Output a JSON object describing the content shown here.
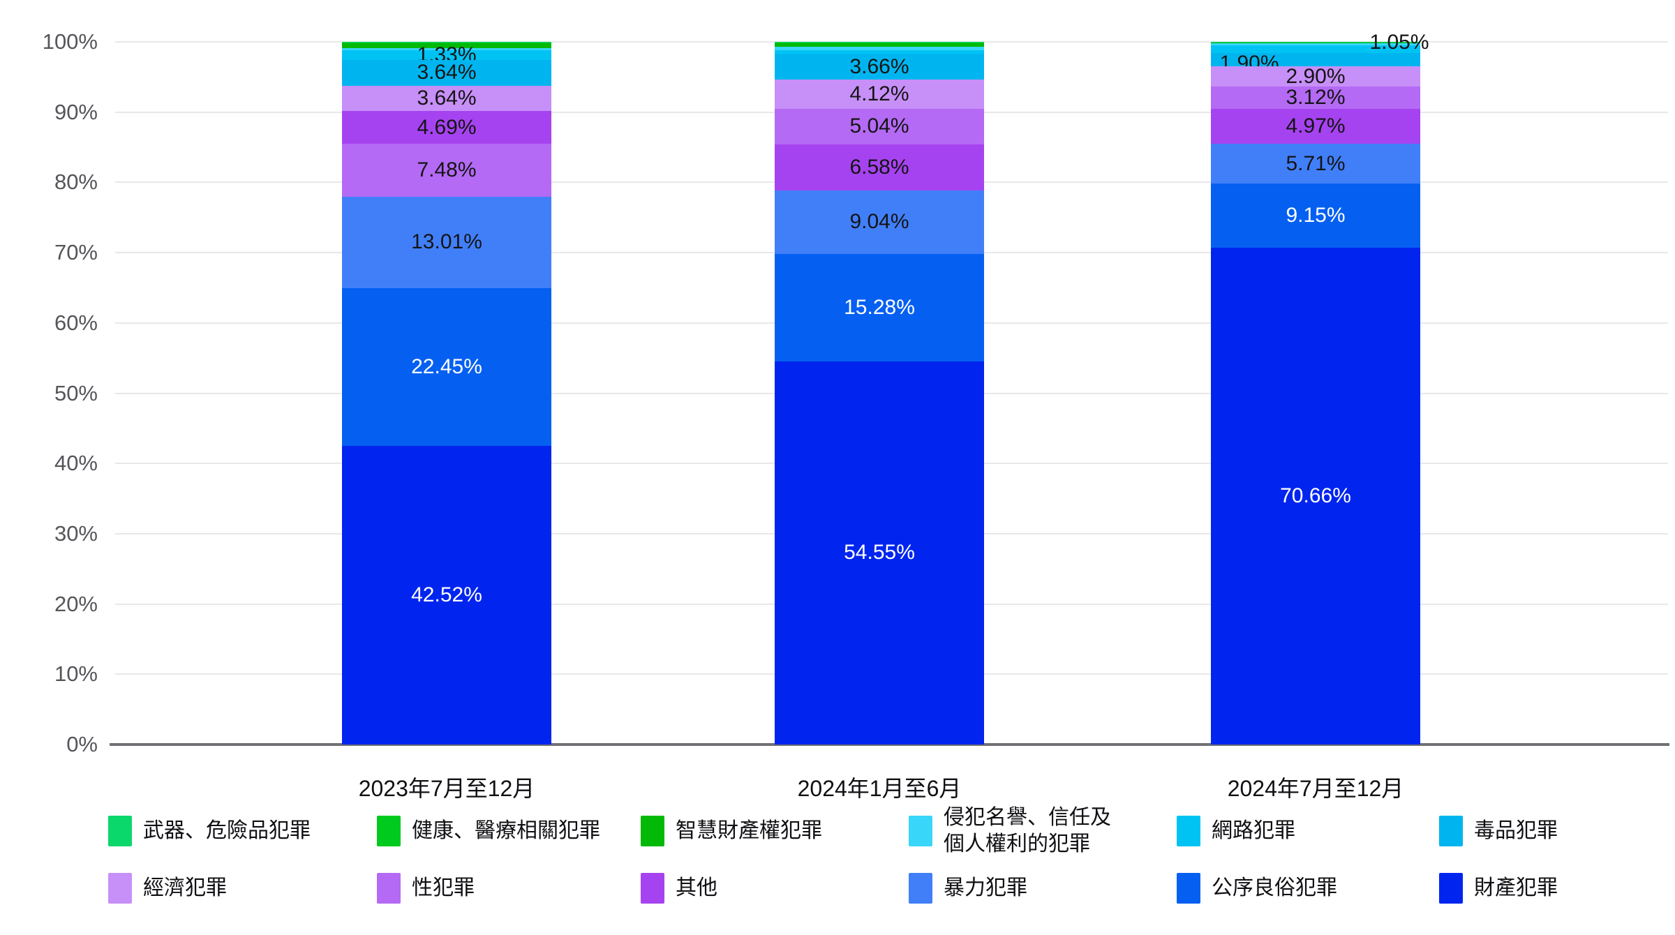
{
  "chart_data": {
    "type": "bar",
    "subtype": "stacked-percentage-column",
    "title": "",
    "unit": "%",
    "ylim": [
      0,
      100
    ],
    "grid": true,
    "legend_position": "bottom",
    "y_ticks": [
      "0%",
      "10%",
      "20%",
      "30%",
      "40%",
      "50%",
      "60%",
      "70%",
      "80%",
      "90%",
      "100%"
    ],
    "categories": [
      "2023年7月至12月",
      "2024年1月至6月",
      "2024年7月至12月"
    ],
    "series": [
      {
        "name": "武器、危險品犯罪",
        "color": "#0BD86B",
        "values": [
          0.1,
          0.1,
          0.05
        ]
      },
      {
        "name": "健康、醫療相關犯罪",
        "color": "#00CA1D",
        "values": [
          0.14,
          0.13,
          0.05
        ]
      },
      {
        "name": "智慧財產權犯罪",
        "color": "#02B907",
        "values": [
          0.7,
          0.45,
          0.14
        ]
      },
      {
        "name": "侵犯名譽、信任及個人權利的犯罪",
        "color": "#38D6F9",
        "values": [
          0.3,
          0.55,
          0.3
        ],
        "legend_lines": [
          "侵犯名譽、信任及",
          "個人權利的犯罪"
        ]
      },
      {
        "name": "網路犯罪",
        "color": "#00C3F4",
        "values": [
          1.33,
          0.5,
          1.05
        ]
      },
      {
        "name": "毒品犯罪",
        "color": "#00B5EF",
        "values": [
          3.64,
          3.66,
          1.9
        ]
      },
      {
        "name": "經濟犯罪",
        "color": "#C78FF8",
        "values": [
          3.64,
          4.12,
          2.9
        ]
      },
      {
        "name": "性犯罪",
        "color": "#B46AF4",
        "values": [
          7.48,
          5.04,
          3.12
        ]
      },
      {
        "name": "其他",
        "color": "#A643F0",
        "values": [
          4.69,
          6.58,
          4.97
        ]
      },
      {
        "name": "暴力犯罪",
        "color": "#417FF9",
        "values": [
          13.01,
          9.04,
          5.71
        ]
      },
      {
        "name": "公序良俗犯罪",
        "color": "#0560F2",
        "values": [
          22.45,
          15.28,
          9.15
        ]
      },
      {
        "name": "財產犯罪",
        "color": "#0125EF",
        "values": [
          42.52,
          54.55,
          70.66
        ]
      }
    ],
    "stack_orders_top_to_bottom": [
      [
        0,
        1,
        2,
        3,
        4,
        5,
        6,
        8,
        7,
        9,
        10,
        11
      ],
      [
        0,
        1,
        2,
        3,
        4,
        5,
        6,
        7,
        8,
        9,
        10,
        11
      ],
      [
        0,
        1,
        2,
        3,
        4,
        5,
        6,
        7,
        8,
        9,
        10,
        11
      ]
    ],
    "label_min_pct": 1.0,
    "white_label_series": [
      10,
      11
    ],
    "label_offsets": {
      "2,4": [
        120,
        -10
      ],
      "2,5": [
        -95,
        5
      ]
    },
    "shown_value_labels": {
      "2023年7月至12月": [
        "1.33%",
        "3.64%",
        "3.64%",
        "4.69%",
        "7.48%",
        "13.01%",
        "22.45%",
        "42.52%"
      ],
      "2024年1月至6月": [
        "3.66%",
        "4.12%",
        "5.04%",
        "6.58%",
        "9.04%",
        "15.28%",
        "54.55%"
      ],
      "2024年7月至12月": [
        "1.05%",
        "1.90%",
        "2.90%",
        "3.12%",
        "4.97%",
        "5.71%",
        "9.15%",
        "70.66%"
      ]
    }
  }
}
